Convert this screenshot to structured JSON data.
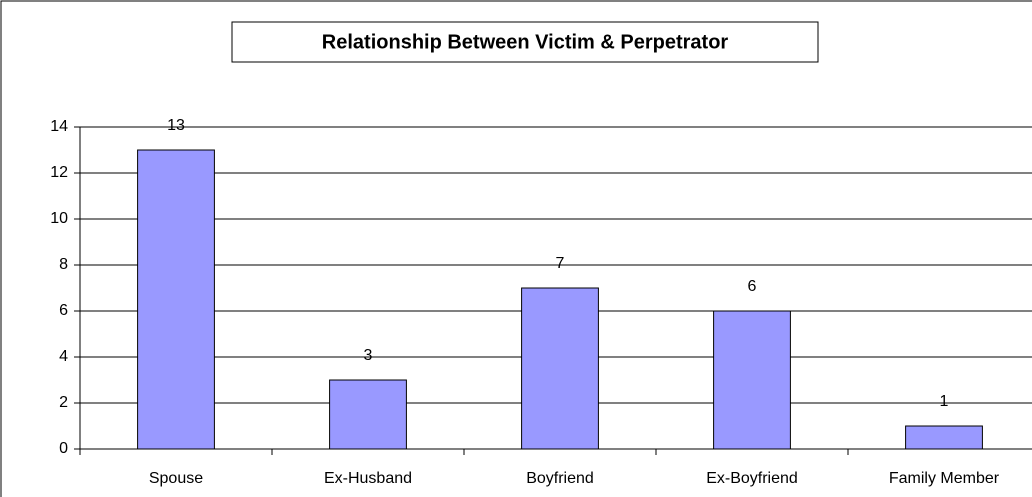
{
  "chart_data": {
    "type": "bar",
    "title": "Relationship Between Victim & Perpetrator",
    "categories": [
      "Spouse",
      "Ex-Husband",
      "Boyfriend",
      "Ex-Boyfriend",
      "Family Member"
    ],
    "values": [
      13,
      3,
      7,
      6,
      1
    ],
    "color": "#9999ff",
    "ylim": [
      0,
      14
    ],
    "yticks": [
      0,
      2,
      4,
      6,
      8,
      10,
      12,
      14
    ],
    "grid": true
  }
}
